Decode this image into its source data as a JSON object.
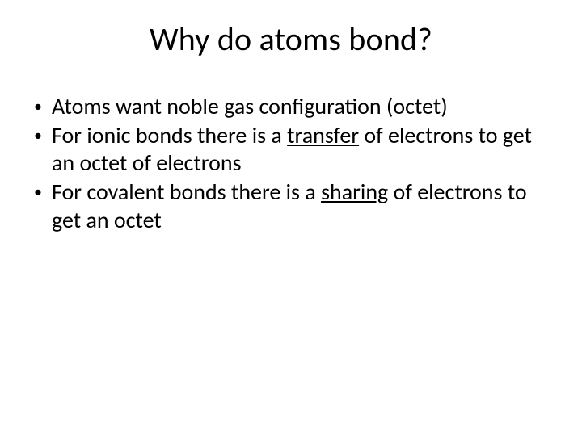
{
  "slide": {
    "title": "Why do atoms bond?",
    "bullets": [
      {
        "pre": "Atoms want noble gas configuration (octet)",
        "u": "",
        "post": ""
      },
      {
        "pre": "For ionic bonds there is a ",
        "u": "transfer",
        "post": " of electrons to get an octet of electrons"
      },
      {
        "pre": "For covalent bonds there is a ",
        "u": "sharing",
        "post": " of electrons to get an octet"
      }
    ],
    "bullet_char": "•",
    "colors": {
      "background": "#ffffff",
      "text": "#000000"
    },
    "fonts": {
      "title_size_pt": 40,
      "body_size_pt": 28,
      "family": "Calibri"
    }
  }
}
